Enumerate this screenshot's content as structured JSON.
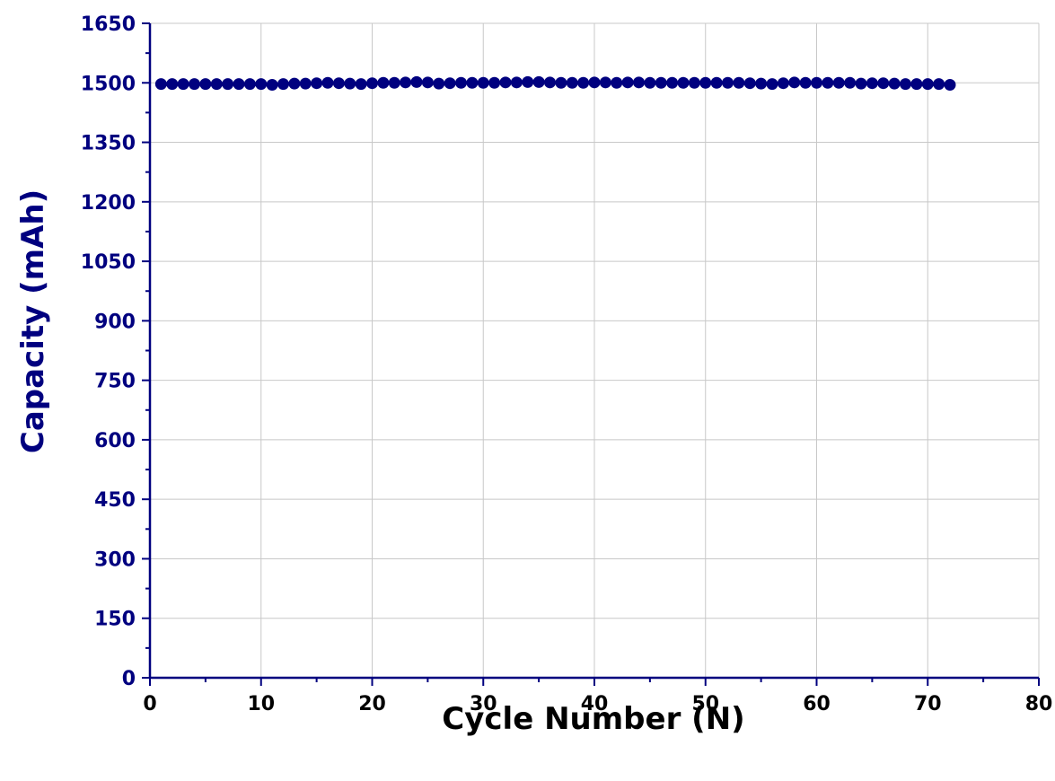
{
  "chart_data": {
    "type": "scatter",
    "title": "",
    "xlabel": "Cycle Number (N)",
    "ylabel": "Capacity (mAh)",
    "xlim": [
      0,
      80
    ],
    "ylim": [
      0,
      1650
    ],
    "x_ticks": [
      "0",
      "10",
      "20",
      "30",
      "40",
      "50",
      "60",
      "70",
      "80"
    ],
    "y_ticks": [
      "0",
      "150",
      "300",
      "450",
      "600",
      "750",
      "900",
      "1050",
      "1200",
      "1350",
      "1500",
      "1650"
    ],
    "grid": true,
    "colors": {
      "marker": "#00007f",
      "axis": "#00007f",
      "grid": "#c8c8c8"
    },
    "series": [
      {
        "x": [
          1,
          2,
          3,
          4,
          5,
          6,
          7,
          8,
          9,
          10,
          11,
          12,
          13,
          14,
          15,
          16,
          17,
          18,
          19,
          20,
          21,
          22,
          23,
          24,
          25,
          26,
          27,
          28,
          29,
          30,
          31,
          32,
          33,
          34,
          35,
          36,
          37,
          38,
          39,
          40,
          41,
          42,
          43,
          44,
          45,
          46,
          47,
          48,
          49,
          50,
          51,
          52,
          53,
          54,
          55,
          56,
          57,
          58,
          59,
          60,
          61,
          62,
          63,
          64,
          65,
          66,
          67,
          68,
          69,
          70,
          71,
          72
        ],
        "y": [
          1497,
          1497,
          1497,
          1497,
          1497,
          1497,
          1497,
          1497,
          1497,
          1497,
          1495,
          1497,
          1498,
          1498,
          1499,
          1500,
          1499,
          1498,
          1497,
          1499,
          1500,
          1500,
          1501,
          1502,
          1501,
          1498,
          1499,
          1500,
          1500,
          1500,
          1500,
          1501,
          1501,
          1502,
          1502,
          1501,
          1500,
          1500,
          1500,
          1501,
          1501,
          1500,
          1501,
          1501,
          1500,
          1500,
          1500,
          1500,
          1500,
          1500,
          1500,
          1500,
          1500,
          1499,
          1498,
          1497,
          1499,
          1501,
          1500,
          1500,
          1500,
          1500,
          1500,
          1498,
          1499,
          1499,
          1498,
          1497,
          1497,
          1497,
          1497,
          1495
        ]
      }
    ]
  }
}
